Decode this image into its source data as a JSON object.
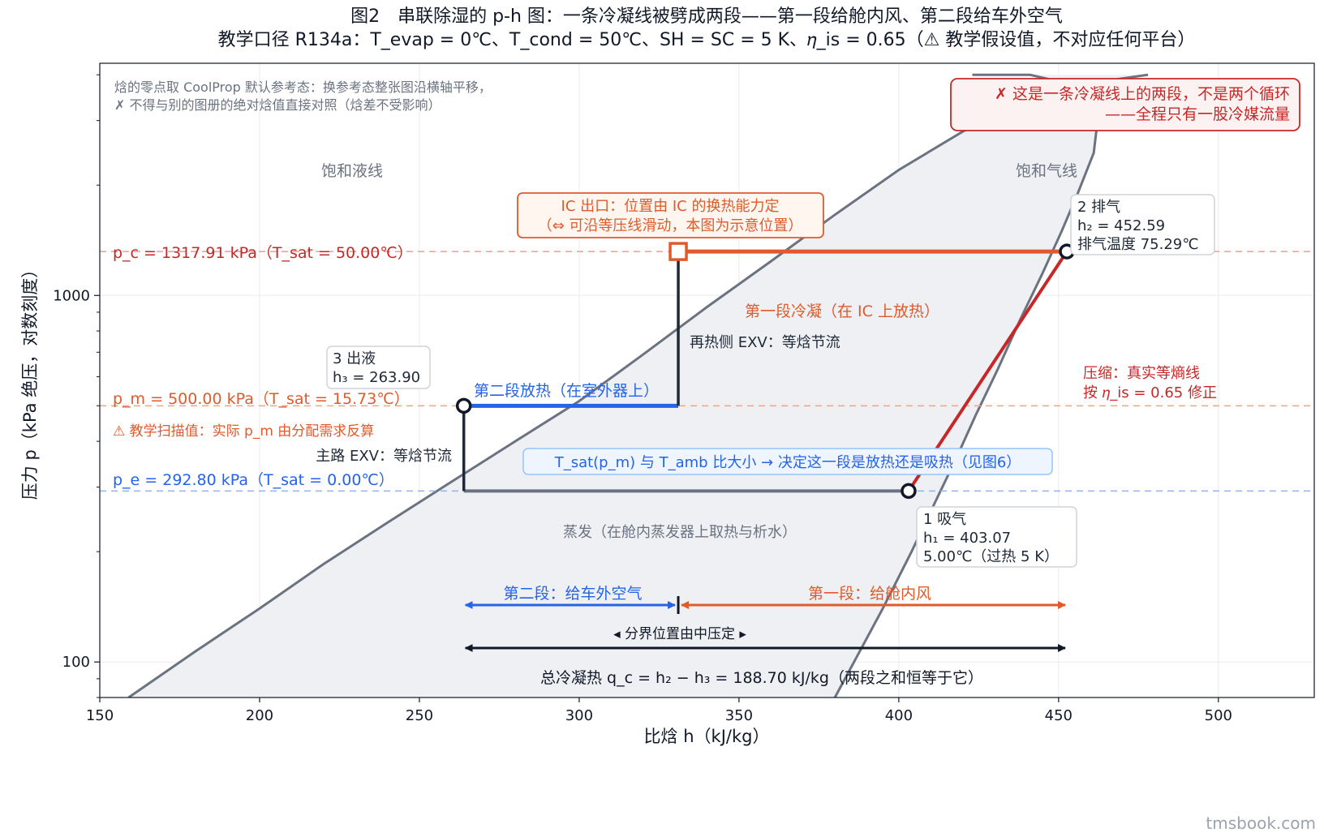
{
  "title": {
    "line1": "图2　串联除湿的 p-h 图：一条冷凝线被劈成两段——第一段给舱内风、第二段给车外空气",
    "line2": "教学口径 R134a：T_evap = 0℃、T_cond = 50℃、SH = SC = 5 K、𝜂_is = 0.65（⚠ 教学假设值，不对应任何平台）"
  },
  "watermark": "tmsbook.com",
  "chart_data": {
    "type": "line",
    "xlabel": "比焓 h（kJ/kg）",
    "ylabel": "压力 p（kPa 绝压，对数刻度）",
    "xlim": [
      150,
      530
    ],
    "ylim": [
      80,
      4300
    ],
    "yscale": "log",
    "grid": true,
    "xticks": [
      150,
      200,
      250,
      300,
      350,
      400,
      450,
      500
    ],
    "yticks": [
      100,
      1000
    ],
    "colors": {
      "dome_line": "#6b7280",
      "dome_fill": "#eef0f4",
      "condense_stage1": "#e05a2b",
      "condense_stage2": "#2563eb",
      "compression": "#c62828",
      "throttle": "#1f2937",
      "evaporation": "#6b7280",
      "pc_line": "#ef9a9a",
      "pm_line": "#f0a586",
      "pe_line": "#90b4f0"
    },
    "dome": {
      "liquid_label": "饱和液线",
      "vapor_label": "饱和气线",
      "liquid": [
        [
          159,
          80
        ],
        [
          180,
          107
        ],
        [
          200,
          140
        ],
        [
          220,
          185
        ],
        [
          240,
          240
        ],
        [
          260,
          310
        ],
        [
          280,
          400
        ],
        [
          300,
          515
        ],
        [
          320,
          690
        ],
        [
          340,
          930
        ],
        [
          360,
          1240
        ],
        [
          380,
          1660
        ],
        [
          400,
          2200
        ],
        [
          420,
          2800
        ],
        [
          440,
          3400
        ],
        [
          460,
          3800
        ],
        [
          478,
          4000
        ]
      ],
      "vapor": [
        [
          380,
          80
        ],
        [
          386,
          100
        ],
        [
          395,
          140
        ],
        [
          404,
          200
        ],
        [
          412,
          280
        ],
        [
          418,
          360
        ],
        [
          424,
          470
        ],
        [
          431,
          630
        ],
        [
          438,
          860
        ],
        [
          445,
          1150
        ],
        [
          451,
          1500
        ],
        [
          456,
          1900
        ],
        [
          461,
          2450
        ],
        [
          462,
          2900
        ],
        [
          459,
          3400
        ],
        [
          452,
          3800
        ],
        [
          441,
          4000
        ],
        [
          423,
          4000
        ]
      ]
    },
    "pressure_levels": [
      {
        "name": "p_c",
        "label": "p_c = 1317.91 kPa（T_sat = 50.00℃）",
        "p": 1317.91
      },
      {
        "name": "p_m",
        "label": "p_m = 500.00 kPa（T_sat = 15.73℃）",
        "p": 500.0,
        "note": "⚠ 教学扫描值：实际 p_m 由分配需求反算"
      },
      {
        "name": "p_e",
        "label": "p_e = 292.80 kPa（T_sat = 0.00℃）",
        "p": 292.8
      }
    ],
    "series": [
      {
        "name": "压缩",
        "points": [
          [
            403.07,
            292.8
          ],
          [
            452.59,
            1317.91
          ]
        ]
      },
      {
        "name": "第一段冷凝",
        "points": [
          [
            452.59,
            1317.91
          ],
          [
            331,
            1317.91
          ]
        ]
      },
      {
        "name": "再热侧 EXV",
        "points": [
          [
            331,
            1317.91
          ],
          [
            331,
            500
          ]
        ]
      },
      {
        "name": "第二段放热",
        "points": [
          [
            331,
            500
          ],
          [
            263.9,
            500
          ]
        ]
      },
      {
        "name": "主路 EXV",
        "points": [
          [
            263.9,
            500
          ],
          [
            263.9,
            292.8
          ]
        ]
      },
      {
        "name": "蒸发",
        "points": [
          [
            263.9,
            292.8
          ],
          [
            403.07,
            292.8
          ]
        ]
      }
    ],
    "state_points": [
      {
        "id": "1",
        "h": 403.07,
        "p": 292.8,
        "lines": [
          "1 吸气",
          "h₁ = 403.07",
          "5.00℃（过热 5 K）"
        ]
      },
      {
        "id": "2",
        "h": 452.59,
        "p": 1317.91,
        "lines": [
          "2 排气",
          "h₂ = 452.59",
          "排气温度 75.29℃"
        ]
      },
      {
        "id": "3",
        "h": 263.9,
        "p": 500.0,
        "lines": [
          "3 出液",
          "h₃ = 263.90"
        ]
      },
      {
        "id": "IC",
        "h": 331,
        "p": 1317.91,
        "lines": []
      }
    ],
    "annotations": {
      "reference_note_1": "焓的零点取 CoolProp 默认参考态：换参考态整张图沿横轴平移，",
      "reference_note_2": "✗ 不得与别的图册的绝对焓值直接对照（焓差不受影响）",
      "warning_box_1": "✗ 这是一条冷凝线上的两段，不是两个循环",
      "warning_box_2": "——全程只有一股冷媒流量",
      "ic_box_1": "IC 出口：位置由 IC 的换热能力定",
      "ic_box_2": "（⇔ 可沿等压线滑动，本图为示意位置）",
      "stage1_condense": "第一段冷凝（在 IC 上放热）",
      "reheat_exv": "再热侧 EXV：等焓节流",
      "stage2_reject": "第二段放热（在室外器上）",
      "main_exv": "主路 EXV：等焓节流",
      "compression_1": "压缩：真实等熵线",
      "compression_2": "按 𝜂_is = 0.65 修正",
      "tsat_box": "T_sat(p_m) 与 T_amb 比大小 → 决定这一段是放热还是吸热（见图6）",
      "evaporation": "蒸发（在舱内蒸发器上取热与析水）",
      "stage2_label": "第二段：给车外空气",
      "stage1_label": "第一段：给舱内风",
      "split_label": "◂ 分界位置由中压定 ▸",
      "total_label": "总冷凝热 q_c = h₂ − h₃ = 188.70 kJ/kg（两段之和恒等于它）"
    }
  }
}
